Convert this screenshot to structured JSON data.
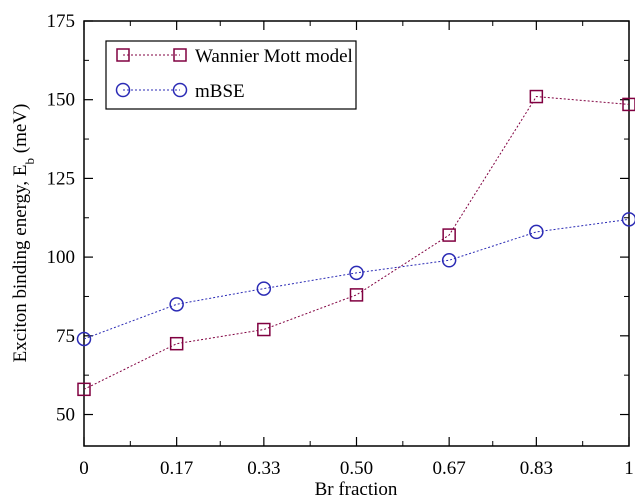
{
  "chart_data": {
    "type": "line",
    "title": "",
    "xlabel": "Br fraction",
    "ylabel_main": "Exciton binding energy, E",
    "ylabel_sub": "b",
    "ylabel_unit": " (meV)",
    "x": [
      0,
      0.17,
      0.33,
      0.5,
      0.67,
      0.83,
      1
    ],
    "x_tick_labels": [
      "0",
      "0.17",
      "0.33",
      "0.50",
      "0.67",
      "0.83",
      "1"
    ],
    "y_ticks": [
      50,
      75,
      100,
      125,
      150,
      175
    ],
    "y_tick_labels": [
      "50",
      "75",
      "100",
      "125",
      "150",
      "175"
    ],
    "xlim": [
      0,
      1
    ],
    "ylim": [
      40,
      175
    ],
    "grid": false,
    "legend_position": "top-left",
    "series": [
      {
        "name": "Wannier Mott model",
        "color": "#800040",
        "marker": "square",
        "line_style": "dotted",
        "values": [
          58,
          72.5,
          77,
          88,
          107,
          151,
          148.5
        ]
      },
      {
        "name": "mBSE",
        "color": "#2b2bb5",
        "marker": "circle",
        "line_style": "dotted",
        "values": [
          74,
          85,
          90,
          95,
          99,
          108,
          112
        ]
      }
    ]
  }
}
